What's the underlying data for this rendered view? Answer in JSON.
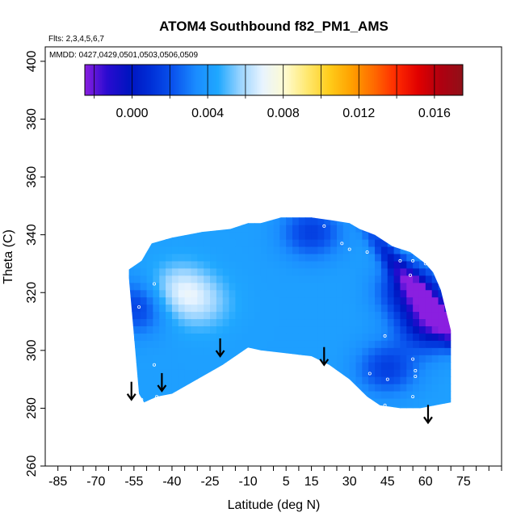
{
  "chart_data": {
    "type": "heatmap",
    "title": "ATOM4 Southbound f82_PM1_AMS",
    "flights_note": "Flts: 2,3,4,5,6,7",
    "dates_note": "MMDD: 0427,0429,0501,0503,0506,0509",
    "xlabel": "Latitude (deg N)",
    "ylabel": "Theta (C)",
    "xlim": [
      -90,
      90
    ],
    "ylim": [
      260,
      405
    ],
    "x_ticks": [
      -85,
      -70,
      -55,
      -40,
      -25,
      -10,
      5,
      15,
      30,
      45,
      60,
      75
    ],
    "x_tick_labels": [
      "-85",
      "-70",
      "-55",
      "-40",
      "-25",
      "-10",
      "5",
      "15",
      "30",
      "45",
      "60",
      "75"
    ],
    "y_ticks": [
      260,
      280,
      300,
      320,
      340,
      360,
      380,
      400
    ],
    "y_tick_labels": [
      "260",
      "280",
      "300",
      "320",
      "340",
      "360",
      "380",
      "400"
    ],
    "colorbar": {
      "range": [
        -0.0025,
        0.0175
      ],
      "ticks": [
        0.0,
        0.004,
        0.008,
        0.012,
        0.016
      ],
      "tick_labels": [
        "0.000",
        "0.004",
        "0.008",
        "0.012",
        "0.016"
      ],
      "colors": [
        "#8a1fe0",
        "#2a0bd0",
        "#0014c0",
        "#0030d8",
        "#0a55ee",
        "#1a8cff",
        "#20a8ff",
        "#9ad4ff",
        "#e8f4ff",
        "#fffbd0",
        "#ffe870",
        "#ffcc1a",
        "#ffa000",
        "#ff6a00",
        "#ff2a00",
        "#e00000",
        "#b00010",
        "#901018"
      ]
    },
    "coverage": {
      "top_edge_lat": [
        -57,
        -52,
        -48,
        -40,
        -28,
        -17,
        -10,
        -5,
        3,
        15,
        23,
        30,
        34,
        40,
        47,
        54,
        60,
        63,
        66,
        68,
        70
      ],
      "top_edge_theta": [
        328,
        331,
        337,
        339,
        341,
        342,
        344,
        344,
        346,
        346,
        345,
        344,
        342,
        340,
        336,
        334,
        330,
        327,
        321,
        314,
        307
      ],
      "bottom_edge_lat": [
        -57,
        -55,
        -53,
        -51,
        -46,
        -40,
        -30,
        -20,
        -10,
        -5,
        5,
        15,
        22,
        30,
        37,
        42,
        50,
        58,
        64,
        70
      ],
      "bottom_edge_theta": [
        325,
        305,
        285,
        282,
        284,
        285,
        290,
        295,
        301,
        300,
        299,
        298,
        295,
        290,
        284,
        281,
        280,
        280,
        281,
        282
      ]
    },
    "features": [
      {
        "kind": "high",
        "lat": -37,
        "theta": 321,
        "value": 0.0065
      },
      {
        "kind": "high",
        "lat": -28,
        "theta": 316,
        "value": 0.0055
      },
      {
        "kind": "low",
        "lat": 54,
        "theta": 321,
        "value": 0.0
      },
      {
        "kind": "low",
        "lat": 63,
        "theta": 310,
        "value": -0.0015
      },
      {
        "kind": "low",
        "lat": 45,
        "theta": 294,
        "value": 0.0015
      },
      {
        "kind": "low",
        "lat": 15,
        "theta": 341,
        "value": 0.0015
      },
      {
        "kind": "low",
        "lat": -54,
        "theta": 315,
        "value": 0.0015
      }
    ],
    "arrows_lat": [
      -56,
      -44,
      -21,
      20,
      61
    ],
    "arrows_theta": [
      283,
      286,
      298,
      295,
      275
    ]
  }
}
